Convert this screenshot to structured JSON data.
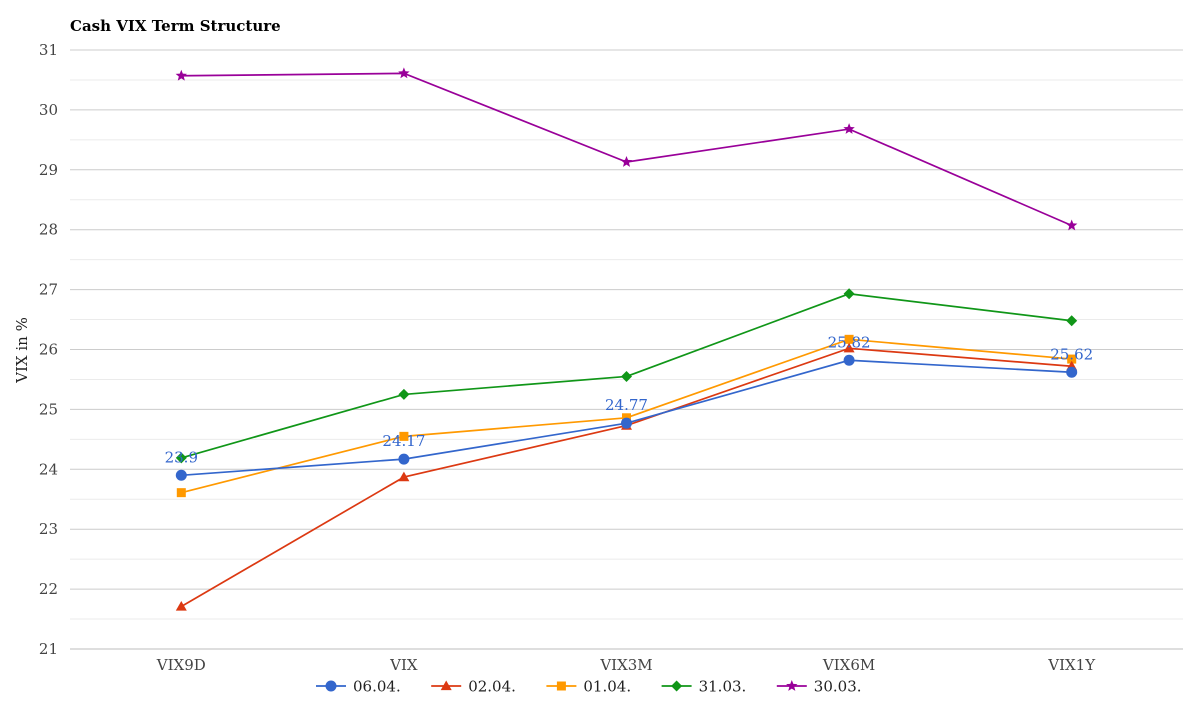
{
  "chart_data": {
    "type": "line",
    "title": "Cash VIX Term Structure",
    "xlabel": "",
    "ylabel": "VIX in %",
    "categories": [
      "VIX9D",
      "VIX",
      "VIX3M",
      "VIX6M",
      "VIX1Y"
    ],
    "ylim": [
      21,
      31
    ],
    "yticks": [
      21,
      22,
      23,
      24,
      25,
      26,
      27,
      28,
      29,
      30,
      31
    ],
    "grid": true,
    "legend_position": "bottom",
    "series": [
      {
        "name": "06.04.",
        "color": "#3366cc",
        "marker": "circle",
        "values": [
          23.9,
          24.17,
          24.77,
          25.82,
          25.62
        ],
        "data_labels": [
          "23.9",
          "24.17",
          "24.77",
          "25.82",
          "25.62"
        ]
      },
      {
        "name": "02.04.",
        "color": "#dc3912",
        "marker": "triangle",
        "values": [
          21.71,
          23.87,
          24.73,
          26.02,
          25.72
        ]
      },
      {
        "name": "01.04.",
        "color": "#ff9900",
        "marker": "square",
        "values": [
          23.61,
          24.55,
          24.86,
          26.17,
          25.84
        ]
      },
      {
        "name": "31.03.",
        "color": "#109618",
        "marker": "diamond",
        "values": [
          24.19,
          25.25,
          25.55,
          26.93,
          26.48
        ]
      },
      {
        "name": "30.03.",
        "color": "#990099",
        "marker": "star",
        "values": [
          30.57,
          30.61,
          29.13,
          29.68,
          28.07
        ]
      }
    ]
  }
}
